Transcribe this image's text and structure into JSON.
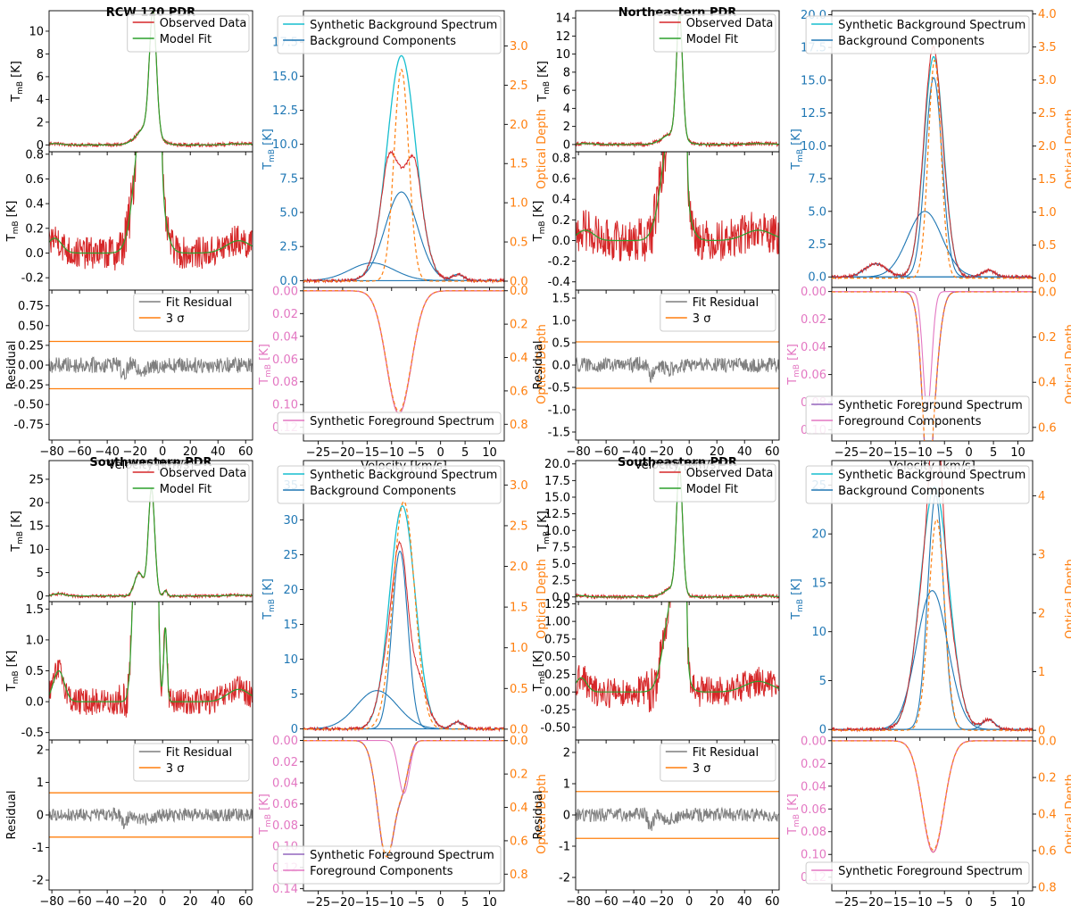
{
  "colors": {
    "observed": "#d62728",
    "model": "#2ca02c",
    "residual": "#7f7f7f",
    "sigma": "#ff7f0e",
    "bg_synth": "#17becf",
    "bg_comp": "#1f77b4",
    "fg_synth_a": "#9467bd",
    "fg_synth_b": "#e377c2",
    "tau": "#ff7f0e",
    "axis_blue": "#1f77b4",
    "axis_orange": "#ff7f0e",
    "axis_pink": "#e377c2"
  },
  "labels": {
    "tmb": "T",
    "tmb_sub": "mB",
    "tmb_unit": " [K]",
    "residual": "Residual",
    "velocity_kms": "Velocity [km/s]",
    "optical_depth": "Optical Depth",
    "observed": "Observed Data",
    "model": "Model Fit",
    "fit_residual": "Fit Residual",
    "sigma": "3 σ",
    "bg_synth": "Synthetic Background Spectrum",
    "bg_comp": "Background Components",
    "fg_synth": "Synthetic Foreground Spectrum",
    "fg_comp": "Foreground Components"
  },
  "chart_data": [
    {
      "type": "line",
      "title": "RCW 120 PDR",
      "fit": {
        "x_range": [
          -82,
          65
        ],
        "x_ticks": [
          -80,
          -60,
          -40,
          -20,
          0,
          20,
          40,
          60
        ],
        "top_ylim": [
          -0.6,
          11.8
        ],
        "top_ticks": [
          0,
          2,
          4,
          6,
          8,
          10
        ],
        "zoom_ylim": [
          -0.3,
          0.82
        ],
        "zoom_ticks": [
          -0.2,
          0.0,
          0.2,
          0.4,
          0.6,
          0.8
        ],
        "resid_ylim": [
          -0.95,
          0.95
        ],
        "resid_ticks": [
          -0.75,
          -0.5,
          -0.25,
          0.0,
          0.25,
          0.5,
          0.75
        ],
        "sigma3": 0.3,
        "profile": [
          {
            "a": 10.5,
            "c": -7,
            "s": 2.5
          },
          {
            "a": 1.6,
            "c": -11,
            "s": 7
          }
        ],
        "wings": [
          {
            "a": 0.12,
            "c": -78,
            "s": 5
          },
          {
            "a": 0.1,
            "c": 55,
            "s": 9
          }
        ],
        "noise_top": 0.14,
        "noise_zoom": 0.13,
        "noise_resid": 0.1
      },
      "background": {
        "x_range": [
          -28,
          13
        ],
        "x_ticks": [
          -25,
          -20,
          -15,
          -10,
          -5,
          0,
          5,
          10
        ],
        "ylim": [
          -0.5,
          19.8
        ],
        "yticks": [
          0.0,
          2.5,
          5.0,
          7.5,
          10.0,
          12.5,
          15.0,
          17.5
        ],
        "tau_lim": [
          -0.08,
          3.45
        ],
        "tau_ticks": [
          0.0,
          0.5,
          1.0,
          1.5,
          2.0,
          2.5,
          3.0
        ],
        "components": [
          {
            "a": 6.5,
            "c": -8,
            "s": 3.3
          },
          {
            "a": 1.3,
            "c": -14,
            "s": 4.5
          },
          {
            "a": 0.45,
            "c": 3.5,
            "s": 1.2
          }
        ],
        "tau": {
          "a": 2.7,
          "c": -8,
          "s": 1.5
        },
        "tau_base": 0.0,
        "synth_peak": 16.5,
        "synth_center": -8,
        "synth_width": 2.9
      },
      "foreground": {
        "ylim": [
          -0.003,
          0.132
        ],
        "yticks": [
          0.0,
          0.02,
          0.04,
          0.06,
          0.08,
          0.1,
          0.12
        ],
        "tau_lim": [
          -0.02,
          0.9
        ],
        "tau_ticks": [
          0.0,
          0.2,
          0.4,
          0.6,
          0.8
        ],
        "components": [],
        "synth_peak": 0.108,
        "synth_center": -8.5,
        "synth_width": 2.5
      },
      "legend_bottom": [
        "fg_synth_b"
      ]
    },
    {
      "type": "line",
      "title": "Northeastern PDR",
      "fit": {
        "x_range": [
          -82,
          65
        ],
        "x_ticks": [
          -80,
          -60,
          -40,
          -20,
          0,
          20,
          40,
          60
        ],
        "top_ylim": [
          -0.8,
          14.8
        ],
        "top_ticks": [
          0,
          2,
          4,
          6,
          8,
          10,
          12,
          14
        ],
        "zoom_ylim": [
          -0.48,
          0.86
        ],
        "zoom_ticks": [
          -0.4,
          -0.2,
          0.0,
          0.2,
          0.4,
          0.6,
          0.8
        ],
        "resid_ylim": [
          -1.68,
          1.68
        ],
        "resid_ticks": [
          -1.5,
          -1.0,
          -0.5,
          0.0,
          0.5,
          1.0,
          1.5
        ],
        "sigma3": 0.52,
        "profile": [
          {
            "a": 13.5,
            "c": -7,
            "s": 2.2
          },
          {
            "a": 1.2,
            "c": -12,
            "s": 7
          }
        ],
        "wings": [
          {
            "a": 0.1,
            "c": -75,
            "s": 6
          },
          {
            "a": 0.1,
            "c": 50,
            "s": 10
          }
        ],
        "noise_top": 0.2,
        "noise_zoom": 0.2,
        "noise_resid": 0.16
      },
      "background": {
        "x_range": [
          -28,
          13
        ],
        "x_ticks": [
          -25,
          -20,
          -15,
          -10,
          -5,
          0,
          5,
          10
        ],
        "ylim": [
          -0.8,
          20.3
        ],
        "yticks": [
          0.0,
          2.5,
          5.0,
          7.5,
          10.0,
          12.5,
          15.0,
          17.5,
          20.0
        ],
        "tau_lim": [
          -0.14,
          4.05
        ],
        "tau_ticks": [
          0.0,
          0.5,
          1.0,
          1.5,
          2.0,
          2.5,
          3.0,
          3.5,
          4.0
        ],
        "components": [
          {
            "a": 15.2,
            "c": -7.2,
            "s": 1.7
          },
          {
            "a": 5.0,
            "c": -9,
            "s": 3.5
          },
          {
            "a": 1.0,
            "c": -19,
            "s": 2.2
          },
          {
            "a": 0.5,
            "c": 4,
            "s": 1.3
          }
        ],
        "tau": {
          "a": 3.3,
          "c": -7.0,
          "s": 1.3
        },
        "tau_base": 0.0,
        "synth_peak": 16.8,
        "synth_center": -7.2,
        "synth_width": 2.0
      },
      "foreground": {
        "ylim": [
          -0.003,
          0.108
        ],
        "yticks": [
          0.0,
          0.02,
          0.04,
          0.06,
          0.08,
          0.1
        ],
        "tau_lim": [
          -0.02,
          0.66
        ],
        "tau_ticks": [
          0.0,
          0.2,
          0.4,
          0.6
        ],
        "components": [
          {
            "a": 0.085,
            "c": -8.5,
            "s": 0.9
          }
        ],
        "synth_peak": 0.09,
        "synth_center": -8.0,
        "synth_width": 1.5
      },
      "legend_bottom": [
        "fg_synth_a",
        "fg_comp"
      ]
    },
    {
      "type": "line",
      "title": "Southwestern PDR",
      "fit": {
        "x_range": [
          -82,
          65
        ],
        "x_ticks": [
          -80,
          -60,
          -40,
          -20,
          0,
          20,
          40,
          60
        ],
        "top_ylim": [
          -1.2,
          29
        ],
        "top_ticks": [
          0,
          5,
          10,
          15,
          20,
          25
        ],
        "zoom_ylim": [
          -0.62,
          1.62
        ],
        "zoom_ticks": [
          -0.5,
          0.0,
          0.5,
          1.0,
          1.5
        ],
        "resid_ylim": [
          -2.3,
          2.3
        ],
        "resid_ticks": [
          -2,
          -1,
          0,
          1,
          2
        ],
        "sigma3": 0.68,
        "profile": [
          {
            "a": 23,
            "c": -8,
            "s": 2.3
          },
          {
            "a": 5.0,
            "c": -17,
            "s": 3.2
          },
          {
            "a": 1.2,
            "c": 2,
            "s": 1.2
          }
        ],
        "wings": [
          {
            "a": 0.5,
            "c": -75,
            "s": 4
          },
          {
            "a": 0.2,
            "c": 55,
            "s": 8
          }
        ],
        "noise_top": 0.3,
        "noise_zoom": 0.22,
        "noise_resid": 0.2
      },
      "background": {
        "x_range": [
          -28,
          13
        ],
        "x_ticks": [
          -25,
          -20,
          -15,
          -10,
          -5,
          0,
          5,
          10
        ],
        "ylim": [
          -1.2,
          38.5
        ],
        "yticks": [
          0,
          5,
          10,
          15,
          20,
          25,
          30,
          35
        ],
        "tau_lim": [
          -0.1,
          3.3
        ],
        "tau_ticks": [
          0.0,
          0.5,
          1.0,
          1.5,
          2.0,
          2.5,
          3.0
        ],
        "components": [
          {
            "a": 25.5,
            "c": -8.3,
            "s": 1.6
          },
          {
            "a": 5.5,
            "c": -13,
            "s": 4.2
          },
          {
            "a": 1.0,
            "c": 3.5,
            "s": 1.2
          }
        ],
        "tau": {
          "a": 2.8,
          "c": -7.5,
          "s": 2.2
        },
        "tau_base": 0.0,
        "synth_peak": 32,
        "synth_center": -7.8,
        "synth_width": 2.6
      },
      "foreground": {
        "ylim": [
          -0.003,
          0.142
        ],
        "yticks": [
          0.0,
          0.02,
          0.04,
          0.06,
          0.08,
          0.1,
          0.12,
          0.14
        ],
        "tau_lim": [
          -0.02,
          0.9
        ],
        "tau_ticks": [
          0.0,
          0.2,
          0.4,
          0.6,
          0.8
        ],
        "components": [
          {
            "a": 0.05,
            "c": -7.5,
            "s": 1.1
          }
        ],
        "synth_peak": 0.112,
        "synth_center": -11.0,
        "synth_width": 1.8
      },
      "legend_bottom": [
        "fg_synth_a",
        "fg_comp"
      ]
    },
    {
      "type": "line",
      "title": "Southeastern PDR",
      "fit": {
        "x_range": [
          -82,
          65
        ],
        "x_ticks": [
          -80,
          -60,
          -40,
          -20,
          0,
          20,
          40,
          60
        ],
        "top_ylim": [
          -0.7,
          20.5
        ],
        "top_ticks": [
          0.0,
          2.5,
          5.0,
          7.5,
          10.0,
          12.5,
          15.0,
          17.5,
          20.0
        ],
        "zoom_ylim": [
          -0.68,
          1.28
        ],
        "zoom_ticks": [
          -0.5,
          -0.25,
          0.0,
          0.25,
          0.5,
          0.75,
          1.0,
          1.25
        ],
        "resid_ylim": [
          -2.4,
          2.4
        ],
        "resid_ticks": [
          -2,
          -1,
          0,
          1,
          2
        ],
        "sigma3": 0.75,
        "profile": [
          {
            "a": 18.5,
            "c": -7,
            "s": 2.2
          },
          {
            "a": 1.3,
            "c": -12,
            "s": 6
          }
        ],
        "wings": [
          {
            "a": 0.2,
            "c": -78,
            "s": 4
          },
          {
            "a": 0.15,
            "c": 50,
            "s": 10
          }
        ],
        "noise_top": 0.25,
        "noise_zoom": 0.22,
        "noise_resid": 0.22
      },
      "background": {
        "x_range": [
          -28,
          13
        ],
        "x_ticks": [
          -25,
          -20,
          -15,
          -10,
          -5,
          0,
          5,
          10
        ],
        "ylim": [
          -0.8,
          27.5
        ],
        "yticks": [
          0,
          5,
          10,
          15,
          20,
          25
        ],
        "tau_lim": [
          -0.12,
          4.6
        ],
        "tau_ticks": [
          0,
          1,
          2,
          3,
          4
        ],
        "components": [
          {
            "a": 24.0,
            "c": -6.8,
            "s": 1.6
          },
          {
            "a": 14.2,
            "c": -7.5,
            "s": 3.2
          },
          {
            "a": 1.0,
            "c": 4,
            "s": 1.3
          }
        ],
        "tau": {
          "a": 3.6,
          "c": -6.6,
          "s": 1.6
        },
        "tau_base": 0.0,
        "synth_peak": 24.8,
        "synth_center": -7.0,
        "synth_width": 2.9
      },
      "foreground": {
        "ylim": [
          -0.003,
          0.132
        ],
        "yticks": [
          0.0,
          0.02,
          0.04,
          0.06,
          0.08,
          0.1,
          0.12
        ],
        "tau_lim": [
          -0.02,
          0.82
        ],
        "tau_ticks": [
          0.0,
          0.2,
          0.4,
          0.6,
          0.8
        ],
        "components": [],
        "synth_peak": 0.098,
        "synth_center": -7.3,
        "synth_width": 2.2
      },
      "legend_bottom": [
        "fg_synth_b"
      ]
    }
  ]
}
